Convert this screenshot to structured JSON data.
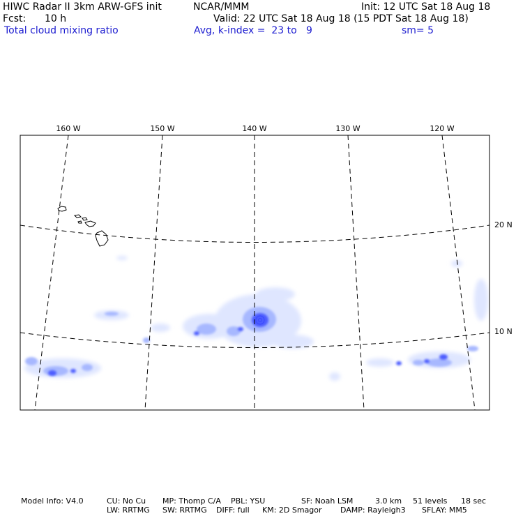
{
  "header": {
    "title": "HIWC Radar II 3km ARW-GFS init",
    "org": "NCAR/MMM",
    "init": "Init: 12 UTC Sat 18 Aug 18",
    "fcst_label": "Fcst:",
    "fcst_value": "10 h",
    "valid": "Valid: 22 UTC Sat 18 Aug 18 (15 PDT Sat 18 Aug 18)",
    "field": "Total cloud mixing ratio",
    "avg": "Avg, k-index =  23 to   9",
    "sm": "sm= 5"
  },
  "map": {
    "lon_labels": [
      "160 W",
      "150 W",
      "140 W",
      "130 W",
      "120 W"
    ],
    "lat_labels": [
      "20 N",
      "10 N"
    ],
    "colors": {
      "cloud_light": "#dfe6ff",
      "cloud_mid": "#a7b8ff",
      "cloud_dark": "#4b5cff"
    }
  },
  "footer": {
    "row1": [
      "Model Info: V4.0",
      "CU: No Cu",
      "MP: Thomp C/A",
      "PBL: YSU",
      "SF: Noah LSM",
      "3.0 km",
      "51 levels",
      "18 sec"
    ],
    "row2": [
      "LW: RRTMG",
      "SW: RRTMG",
      "DIFF: full",
      "KM: 2D Smagor",
      "DAMP: Rayleigh3",
      "SFLAY: MM5"
    ]
  }
}
